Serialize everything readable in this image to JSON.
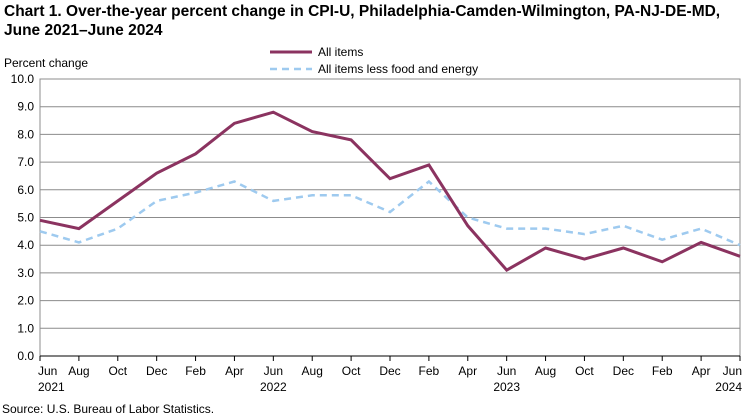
{
  "chart_data": {
    "type": "line",
    "title": "Chart 1. Over-the-year percent change in CPI-U, Philadelphia-Camden-Wilmington,  PA-NJ-DE-MD, June 2021–June 2024",
    "ylabel": "Percent change",
    "xlabel": "",
    "ylim": [
      0,
      10
    ],
    "y_ticks": [
      "0.0",
      "1.0",
      "2.0",
      "3.0",
      "4.0",
      "5.0",
      "6.0",
      "7.0",
      "8.0",
      "9.0",
      "10.0"
    ],
    "grid": true,
    "legend_position": "top-center",
    "x_ticks": [
      {
        "label": "Jun",
        "year": "2021"
      },
      {
        "label": "Aug",
        "year": ""
      },
      {
        "label": "Oct",
        "year": ""
      },
      {
        "label": "Dec",
        "year": ""
      },
      {
        "label": "Feb",
        "year": ""
      },
      {
        "label": "Apr",
        "year": ""
      },
      {
        "label": "Jun",
        "year": "2022"
      },
      {
        "label": "Aug",
        "year": ""
      },
      {
        "label": "Oct",
        "year": ""
      },
      {
        "label": "Dec",
        "year": ""
      },
      {
        "label": "Feb",
        "year": ""
      },
      {
        "label": "Apr",
        "year": ""
      },
      {
        "label": "Jun",
        "year": "2023"
      },
      {
        "label": "Aug",
        "year": ""
      },
      {
        "label": "Oct",
        "year": ""
      },
      {
        "label": "Dec",
        "year": ""
      },
      {
        "label": "Feb",
        "year": ""
      },
      {
        "label": "Apr",
        "year": ""
      },
      {
        "label": "Jun",
        "year": "2024"
      }
    ],
    "series": [
      {
        "name": "All items",
        "color": "#8b3360",
        "style": "solid",
        "values": [
          4.9,
          4.6,
          5.6,
          6.6,
          7.3,
          8.4,
          8.8,
          8.1,
          7.8,
          6.4,
          6.9,
          4.7,
          3.1,
          3.9,
          3.5,
          3.9,
          3.4,
          4.1,
          3.6
        ]
      },
      {
        "name": "All items less food and energy",
        "color": "#9ecaef",
        "style": "dashed",
        "values": [
          4.5,
          4.1,
          4.6,
          5.6,
          5.9,
          6.3,
          5.6,
          5.8,
          5.8,
          5.2,
          6.3,
          5.0,
          4.6,
          4.6,
          4.4,
          4.7,
          4.2,
          4.6,
          4.0
        ]
      }
    ],
    "source": "Source: U.S. Bureau  of Labor Statistics."
  }
}
